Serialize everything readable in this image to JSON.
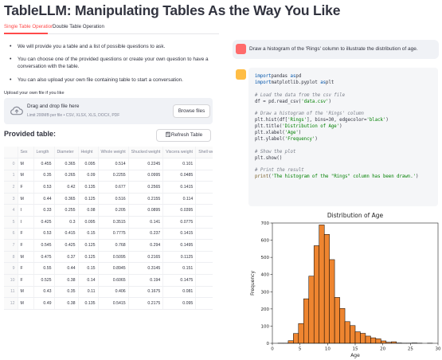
{
  "app": {
    "title": "TableLLM: Manipulating Tables As the Way You Like",
    "tabs": [
      "Single Table Operation",
      "Double Table Operation"
    ],
    "bullets": [
      "We will provide you a table and a list of possible questions to ask.",
      "You can choose one of the provided questions or create your own question to have a conversation with the table.",
      "You can also upload your own file containing table to start a conversation."
    ]
  },
  "upload": {
    "label": "Upload your own file if you like",
    "drop_text": "Drag and drop file here",
    "limit": "Limit 200MB per file • CSV, XLSX, XLS, DOCX, PDF",
    "browse_label": "Browse files"
  },
  "table": {
    "heading": "Provided table:",
    "refresh_label": "Refresh Table",
    "columns": [
      "",
      "Sex",
      "Length",
      "Diameter",
      "Height",
      "Whole weight",
      "Shucked weight",
      "Viscera weight",
      "Shell we"
    ],
    "rows": [
      [
        "0",
        "M",
        "0.455",
        "0.365",
        "0.095",
        "0.514",
        "0.2245",
        "0.101",
        ""
      ],
      [
        "1",
        "M",
        "0.35",
        "0.265",
        "0.09",
        "0.2255",
        "0.0995",
        "0.0485",
        ""
      ],
      [
        "2",
        "F",
        "0.53",
        "0.42",
        "0.135",
        "0.677",
        "0.2565",
        "0.1415",
        ""
      ],
      [
        "3",
        "M",
        "0.44",
        "0.365",
        "0.125",
        "0.516",
        "0.2155",
        "0.114",
        "("
      ],
      [
        "4",
        "I",
        "0.33",
        "0.255",
        "0.08",
        "0.205",
        "0.0895",
        "0.0395",
        "("
      ],
      [
        "5",
        "I",
        "0.425",
        "0.3",
        "0.095",
        "0.3515",
        "0.141",
        "0.0775",
        ""
      ],
      [
        "6",
        "F",
        "0.53",
        "0.415",
        "0.15",
        "0.7775",
        "0.237",
        "0.1415",
        ""
      ],
      [
        "7",
        "F",
        "0.545",
        "0.425",
        "0.125",
        "0.768",
        "0.294",
        "0.1495",
        ""
      ],
      [
        "8",
        "M",
        "0.475",
        "0.37",
        "0.125",
        "0.5095",
        "0.2165",
        "0.1125",
        "("
      ],
      [
        "9",
        "F",
        "0.55",
        "0.44",
        "0.15",
        "0.8945",
        "0.3145",
        "0.151",
        ""
      ],
      [
        "10",
        "F",
        "0.525",
        "0.38",
        "0.14",
        "0.6065",
        "0.194",
        "0.1475",
        ""
      ],
      [
        "11",
        "M",
        "0.43",
        "0.35",
        "0.11",
        "0.406",
        "0.1675",
        "0.081",
        "("
      ],
      [
        "12",
        "M",
        "0.49",
        "0.38",
        "0.135",
        "0.5415",
        "0.2175",
        "0.095",
        ""
      ]
    ]
  },
  "chat": {
    "user_message": "Draw a histogram of the 'Rings' column to illustrate the distribution of age.",
    "code_lines": [
      [
        [
          "kw",
          "import"
        ],
        [
          "",
          "pandas "
        ],
        [
          "kw",
          "as"
        ],
        [
          "",
          "pd"
        ]
      ],
      [
        [
          "kw",
          "import"
        ],
        [
          "",
          "matplotlib.pyplot "
        ],
        [
          "kw",
          "as"
        ],
        [
          "",
          "plt"
        ]
      ],
      [],
      [
        [
          "cm",
          "# Load the data from the csv file"
        ]
      ],
      [
        [
          "",
          "df = pd.read_csv("
        ],
        [
          "str",
          "'data.csv'"
        ],
        [
          "",
          ")"
        ]
      ],
      [],
      [
        [
          "cm",
          "# Draw a histogram of the 'Rings' column"
        ]
      ],
      [
        [
          "",
          "plt.hist(df["
        ],
        [
          "str",
          "'Rings'"
        ],
        [
          "",
          "], bins=30, edgecolor="
        ],
        [
          "str",
          "'black'"
        ],
        [
          "",
          ")"
        ]
      ],
      [
        [
          "",
          "plt.title("
        ],
        [
          "str",
          "'Distribution of Age'"
        ],
        [
          "",
          ")"
        ]
      ],
      [
        [
          "",
          "plt.xlabel("
        ],
        [
          "str",
          "'Age'"
        ],
        [
          "",
          ")"
        ]
      ],
      [
        [
          "",
          "plt.ylabel("
        ],
        [
          "str",
          "'Frequency'"
        ],
        [
          "",
          ")"
        ]
      ],
      [],
      [
        [
          "cm",
          "# Show the plot"
        ]
      ],
      [
        [
          "",
          "plt.show()"
        ]
      ],
      [],
      [
        [
          "cm",
          "# Print the result"
        ]
      ],
      [
        [
          "fn",
          "print"
        ],
        [
          "",
          "("
        ],
        [
          "str",
          "'The histogram of the \"Rings\" column has been drawn.'"
        ],
        [
          "",
          ")"
        ]
      ]
    ]
  },
  "chart_data": {
    "type": "bar",
    "title": "Distribution of Age",
    "xlabel": "Age",
    "ylabel": "Frequency",
    "bin_width": 0.933,
    "bin_starts": [
      1.0,
      1.93,
      2.87,
      3.8,
      4.73,
      5.67,
      6.6,
      7.53,
      8.47,
      9.4,
      10.33,
      11.27,
      12.2,
      13.13,
      14.07,
      15.0,
      15.93,
      16.87,
      17.8,
      18.73,
      19.67,
      20.6,
      21.53,
      22.47,
      23.4,
      24.33,
      25.27,
      26.2,
      27.13,
      28.07
    ],
    "values": [
      1,
      1,
      15,
      57,
      115,
      259,
      391,
      568,
      689,
      634,
      487,
      267,
      203,
      126,
      103,
      67,
      58,
      42,
      32,
      26,
      14,
      6,
      9,
      2,
      1,
      1,
      2,
      1,
      0,
      1
    ],
    "xlim": [
      0,
      30
    ],
    "ylim": [
      0,
      700
    ],
    "xticks": [
      0,
      5,
      10,
      15,
      20,
      25,
      30
    ],
    "yticks": [
      0,
      100,
      200,
      300,
      400,
      500,
      600,
      700
    ],
    "bar_color": "#ee8530",
    "edge_color": "#000000"
  }
}
